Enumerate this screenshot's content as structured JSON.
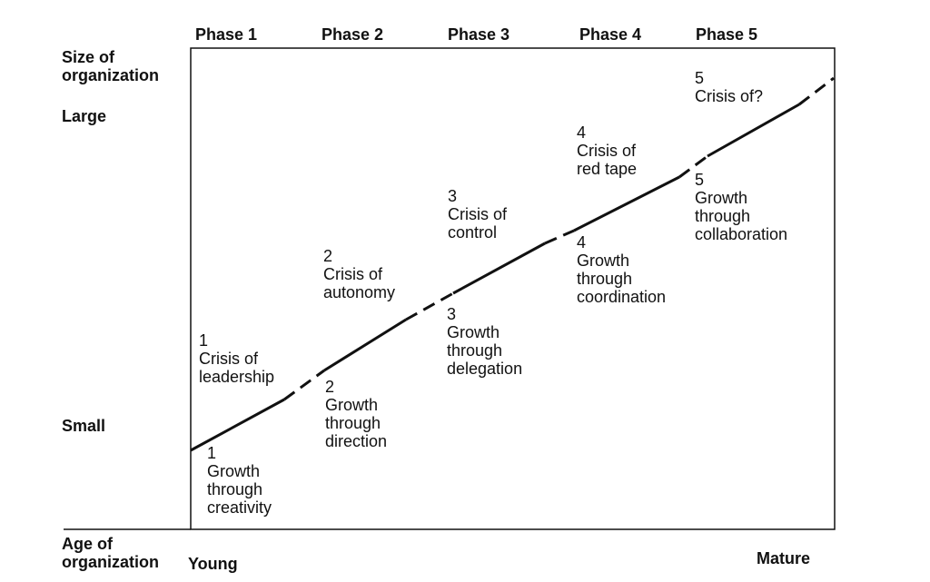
{
  "y_axis": {
    "title": "Size of\norganization",
    "top_label": "Large",
    "bottom_label": "Small"
  },
  "x_axis": {
    "title": "Age of\norganization",
    "left_label": "Young",
    "right_label": "Mature"
  },
  "phases": [
    "Phase 1",
    "Phase 2",
    "Phase 3",
    "Phase 4",
    "Phase 5"
  ],
  "crises": [
    "1\nCrisis of\nleadership",
    "2\nCrisis of\nautonomy",
    "3\nCrisis of\ncontrol",
    "4\nCrisis of\nred tape",
    "5\nCrisis of?"
  ],
  "growths": [
    "1\nGrowth\nthrough\ncreativity",
    "2\nGrowth\nthrough\ndirection",
    "3\nGrowth\nthrough\ndelegation",
    "4\nGrowth\nthrough\ncoordination",
    "5\nGrowth\nthrough\ncollaboration"
  ],
  "colors": {
    "ink": "#111111",
    "background": "#ffffff"
  }
}
